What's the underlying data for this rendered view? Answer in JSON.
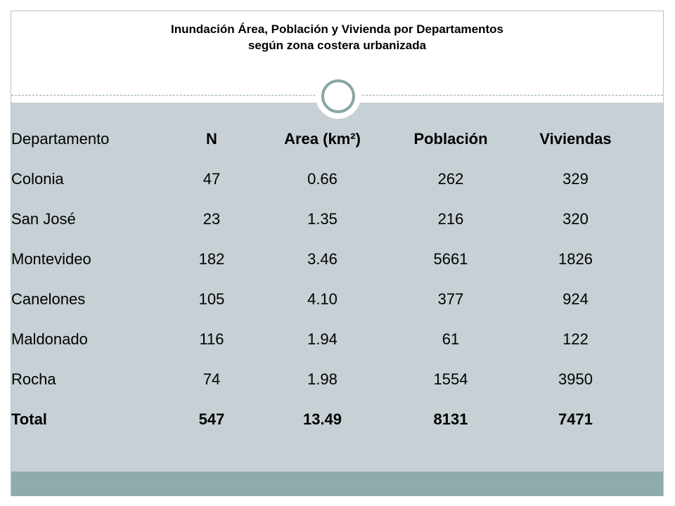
{
  "title": {
    "line1": "Inundación Área, Población y Vivienda por Departamentos",
    "line2": "según zona costera urbanizada"
  },
  "table": {
    "headers": [
      "Departamento",
      "N",
      "Area  (km²)",
      "Población",
      "Viviendas"
    ],
    "rows": [
      [
        "Colonia",
        "47",
        "0.66",
        "262",
        "329"
      ],
      [
        "San José",
        "23",
        "1.35",
        "216",
        "320"
      ],
      [
        "Montevideo",
        "182",
        "3.46",
        "5661",
        "1826"
      ],
      [
        "Canelones",
        "105",
        "4.10",
        "377",
        "924"
      ],
      [
        "Maldonado",
        "116",
        "1.94",
        "61",
        "122"
      ],
      [
        "Rocha",
        "74",
        "1.98",
        "1554",
        "3950"
      ]
    ],
    "total": [
      "Total",
      "547",
      "13.49",
      "8131",
      "7471"
    ]
  },
  "colors": {
    "content_background": "#c6d0d5",
    "footer_band": "#8fabab",
    "ornament": "#8aa6a6"
  }
}
